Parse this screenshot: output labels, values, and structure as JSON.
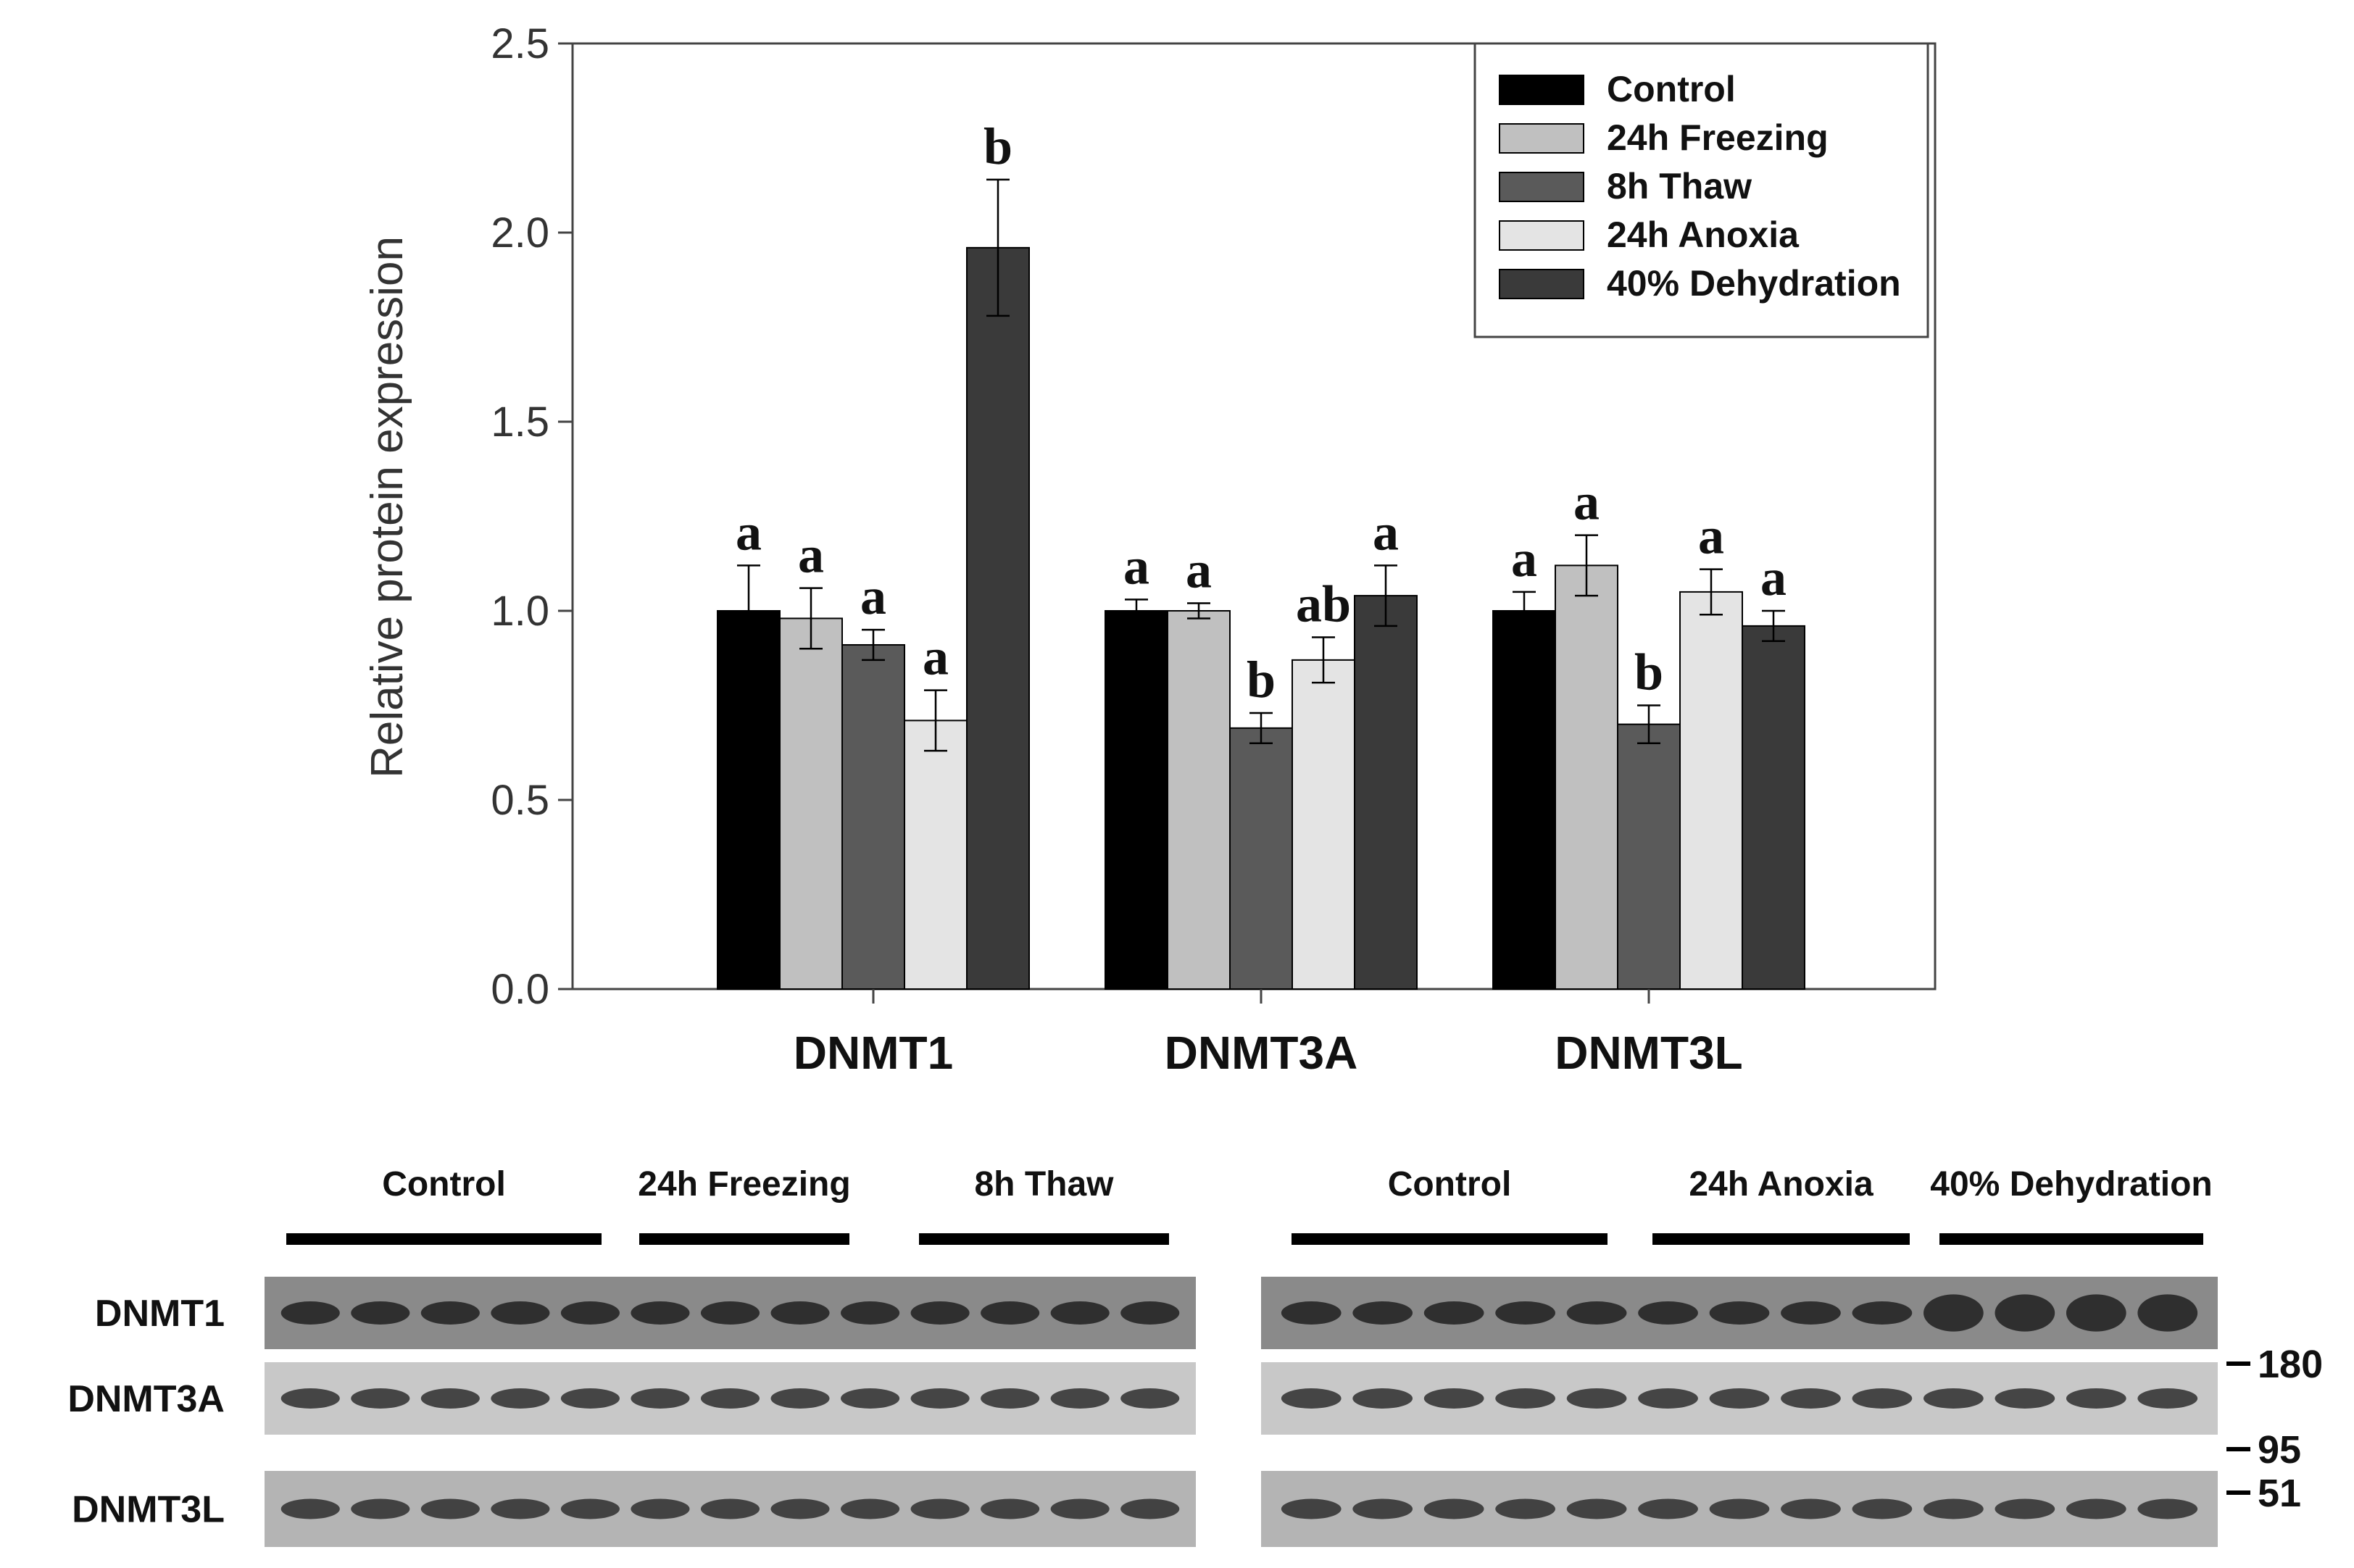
{
  "chart_data": {
    "type": "bar",
    "title": "",
    "xlabel": "",
    "ylabel": "Relative protein expression",
    "ylim": [
      0,
      2.5
    ],
    "yticks": [
      "0.0",
      "0.5",
      "1.0",
      "1.5",
      "2.0",
      "2.5"
    ],
    "grid": false,
    "legend_position": "top-right",
    "categories": [
      "DNMT1",
      "DNMT3A",
      "DNMT3L"
    ],
    "series": [
      {
        "name": "Control",
        "color": "#000000",
        "values": [
          1.0,
          1.0,
          1.0
        ],
        "errors": [
          0.12,
          0.03,
          0.05
        ],
        "letters": [
          "a",
          "a",
          "a"
        ]
      },
      {
        "name": "24h Freezing",
        "color": "#c0c0c0",
        "values": [
          0.98,
          1.0,
          1.12
        ],
        "errors": [
          0.08,
          0.02,
          0.08
        ],
        "letters": [
          "a",
          "a",
          "a"
        ]
      },
      {
        "name": "8h Thaw",
        "color": "#5a5a5a",
        "values": [
          0.91,
          0.69,
          0.7
        ],
        "errors": [
          0.04,
          0.04,
          0.05
        ],
        "letters": [
          "a",
          "b",
          "b"
        ]
      },
      {
        "name": "24h Anoxia",
        "color": "#e4e4e4",
        "values": [
          0.71,
          0.87,
          1.05
        ],
        "errors": [
          0.08,
          0.06,
          0.06
        ],
        "letters": [
          "a",
          "ab",
          "a"
        ]
      },
      {
        "name": "40% Dehydration",
        "color": "#3a3a3a",
        "values": [
          1.96,
          1.04,
          0.96
        ],
        "errors": [
          0.18,
          0.08,
          0.04
        ],
        "letters": [
          "b",
          "a",
          "a"
        ]
      }
    ]
  },
  "blot": {
    "left_panel": {
      "groups": [
        {
          "label": "Control",
          "lanes": 5
        },
        {
          "label": "24h Freezing",
          "lanes": 4
        },
        {
          "label": "8h Thaw",
          "lanes": 4
        }
      ]
    },
    "right_panel": {
      "groups": [
        {
          "label": "Control",
          "lanes": 5
        },
        {
          "label": "24h Anoxia",
          "lanes": 4
        },
        {
          "label": "40% Dehydration",
          "lanes": 4
        }
      ]
    },
    "rows": [
      {
        "label": "DNMT1",
        "marker": "180"
      },
      {
        "label": "DNMT3A",
        "marker": "95"
      },
      {
        "label": "DNMT3L",
        "marker": "51"
      }
    ]
  }
}
